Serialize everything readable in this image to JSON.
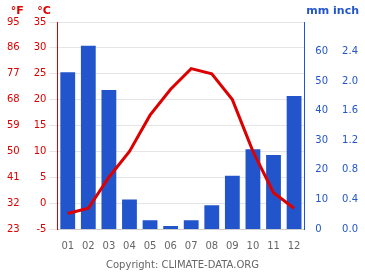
{
  "chart_data": {
    "type": "bar",
    "categories": [
      "01",
      "02",
      "03",
      "04",
      "05",
      "06",
      "07",
      "08",
      "09",
      "10",
      "11",
      "12"
    ],
    "series": [
      {
        "type": "bar",
        "color": "#2255cc",
        "axis": "y2",
        "values": [
          53,
          62,
          47,
          10,
          3,
          1,
          3,
          8,
          18,
          27,
          25,
          45
        ]
      },
      {
        "type": "line",
        "color": "#dd0000",
        "values": [
          -2,
          -1,
          5,
          10,
          17,
          22,
          26,
          25,
          20,
          10,
          2,
          -1
        ]
      }
    ],
    "ylabel": "°C",
    "ylim": [
      -5,
      35
    ],
    "yticks": [
      -5,
      0,
      5,
      10,
      15,
      20,
      25,
      30,
      35
    ],
    "y2label": "mm",
    "y2lim": [
      0,
      70
    ],
    "y2ticks": [
      0,
      10,
      20,
      30,
      40,
      50,
      60
    ],
    "y3label": "°F",
    "y3lim": [
      -5,
      35
    ],
    "y3ticks": [
      {
        "value": -5,
        "label": "23"
      },
      {
        "value": 0,
        "label": "32"
      },
      {
        "value": 5,
        "label": "41"
      },
      {
        "value": 10,
        "label": "50"
      },
      {
        "value": 15,
        "label": "59"
      },
      {
        "value": 20,
        "label": "68"
      },
      {
        "value": 25,
        "label": "77"
      },
      {
        "value": 30,
        "label": "86"
      },
      {
        "value": 35,
        "label": "95"
      }
    ],
    "y4label": "inch",
    "y4lim": [
      0,
      70
    ],
    "y4ticks": [
      {
        "value": 0,
        "label": "0.0"
      },
      {
        "value": 10,
        "label": "0.4"
      },
      {
        "value": 20,
        "label": "0.8"
      },
      {
        "value": 30,
        "label": "1.2"
      },
      {
        "value": 40,
        "label": "1.6"
      },
      {
        "value": 50,
        "label": "2.0"
      },
      {
        "value": 60,
        "label": "2.4"
      }
    ],
    "grid": true,
    "annotations": [
      "Copyright: CLIMATE-DATA.ORG"
    ]
  }
}
